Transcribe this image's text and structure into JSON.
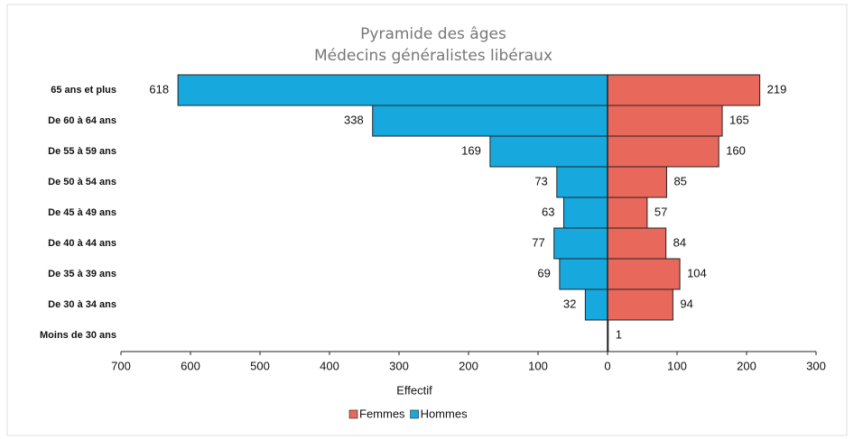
{
  "chart_data": {
    "type": "pyramid",
    "title": "Pyramide des âges",
    "subtitle": "Médecins généralistes libéraux",
    "x_label": "Effectif",
    "categories": [
      "65 ans et plus",
      "De 60 à 64 ans",
      "De 55 à 59 ans",
      "De 50 à 54 ans",
      "De 45 à 49 ans",
      "De 40 à 44 ans",
      "De 35 à 39 ans",
      "De 30 à 34 ans",
      "Moins de 30 ans"
    ],
    "series": [
      {
        "name": "Femmes",
        "color": "#e8685b",
        "values": [
          219,
          165,
          160,
          85,
          57,
          84,
          104,
          94,
          1
        ]
      },
      {
        "name": "Hommes",
        "color": "#17a9dd",
        "values": [
          -618,
          -338,
          -169,
          -73,
          -63,
          -77,
          -69,
          -32,
          null
        ],
        "value_labels": [
          "618",
          "338",
          "169",
          "73",
          "63",
          "77",
          "69",
          "32",
          null
        ]
      }
    ],
    "xlim": [
      -700,
      300
    ],
    "xticks": [
      {
        "value": -700,
        "label": "700"
      },
      {
        "value": -600,
        "label": "600"
      },
      {
        "value": -500,
        "label": "500"
      },
      {
        "value": -400,
        "label": "400"
      },
      {
        "value": -300,
        "label": "300"
      },
      {
        "value": -200,
        "label": "200"
      },
      {
        "value": -100,
        "label": "100"
      },
      0,
      100,
      200,
      300
    ],
    "legend": "bottom"
  }
}
